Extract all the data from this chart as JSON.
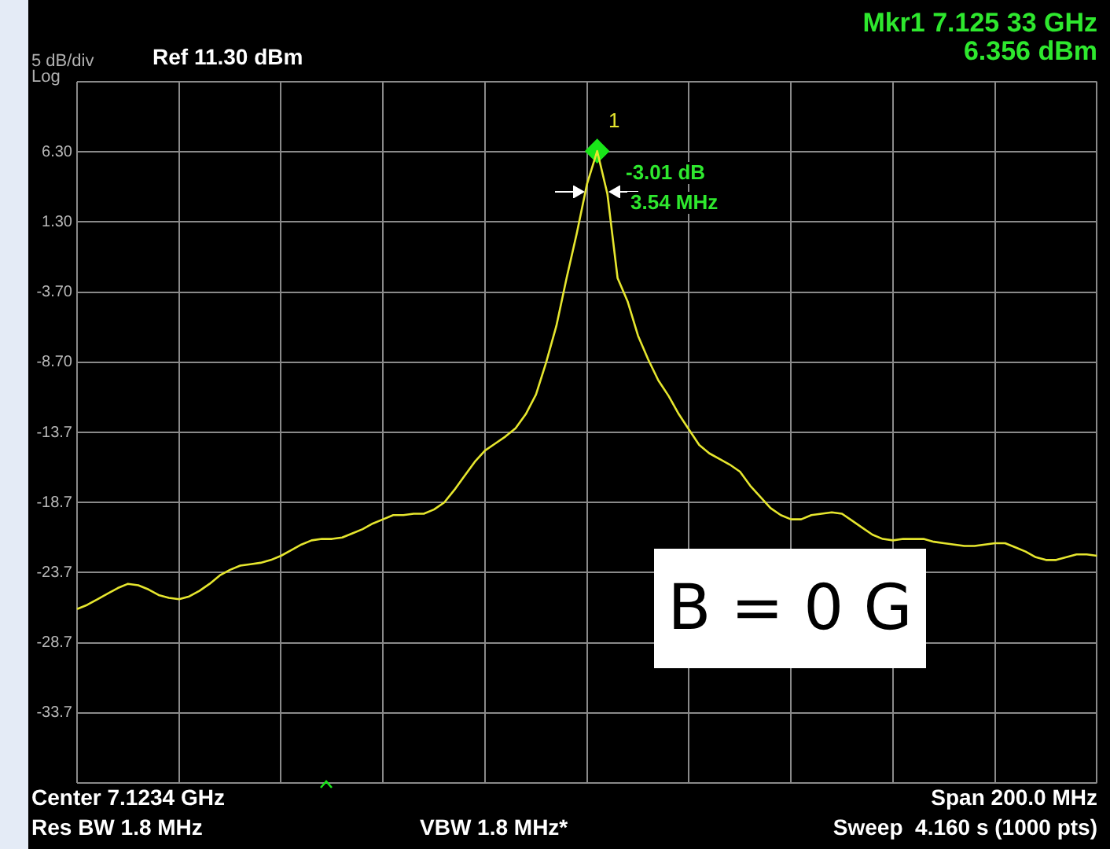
{
  "chart_data": {
    "type": "line",
    "categories": [
      null,
      null,
      null,
      null,
      null,
      null,
      null,
      null,
      null,
      null,
      null,
      null,
      null,
      null,
      null,
      null,
      null,
      null,
      null,
      null,
      null,
      null,
      null,
      null,
      null,
      null,
      null,
      null,
      null,
      null,
      null,
      null,
      null,
      null,
      null,
      null,
      null,
      null,
      null,
      null,
      null,
      null,
      null,
      null,
      null,
      null,
      null,
      null,
      null,
      null,
      null,
      null,
      null,
      null,
      null,
      null,
      null,
      null,
      null,
      null,
      null,
      null,
      null,
      null,
      null,
      null,
      null,
      null,
      null,
      null,
      null,
      null,
      null,
      null,
      null,
      null,
      null,
      null,
      null,
      null,
      null,
      null,
      null,
      null,
      null,
      null,
      null,
      null,
      null,
      null,
      null,
      null,
      null,
      null,
      null,
      null,
      null,
      null,
      null,
      null,
      null
    ],
    "series": [
      {
        "type": "line",
        "color": "#e6e62e",
        "marker": "none",
        "values": [
          -26.3,
          -26.0,
          -25.6,
          -25.2,
          -24.8,
          -24.5,
          -24.6,
          -24.9,
          -25.3,
          -25.5,
          -25.6,
          -25.4,
          -25.0,
          -24.5,
          -23.9,
          -23.5,
          -23.2,
          -23.1,
          -23.0,
          -22.8,
          -22.5,
          -22.1,
          -21.7,
          -21.4,
          -21.3,
          -21.3,
          -21.2,
          -20.9,
          -20.6,
          -20.2,
          -19.9,
          -19.6,
          -19.6,
          -19.5,
          -19.5,
          -19.2,
          -18.7,
          -17.8,
          -16.8,
          -15.8,
          -15.0,
          -14.5,
          -14.0,
          -13.4,
          -12.4,
          -11.0,
          -8.7,
          -6.1,
          -2.7,
          0.5,
          4.0,
          6.356,
          3.3,
          -2.7,
          -4.4,
          -6.8,
          -8.5,
          -10.0,
          -11.1,
          -12.4,
          -13.5,
          -14.6,
          -15.2,
          -15.6,
          -16.0,
          -16.5,
          -17.5,
          -18.3,
          -19.1,
          -19.6,
          -19.9,
          -19.9,
          -19.6,
          -19.5,
          -19.4,
          -19.5,
          -20.0,
          -20.5,
          -21.0,
          -21.3,
          -21.4,
          -21.3,
          -21.3,
          -21.3,
          -21.5,
          -21.6,
          -21.7,
          -21.8,
          -21.8,
          -21.7,
          -21.6,
          -21.6,
          -21.9,
          -22.2,
          -22.6,
          -22.8,
          -22.8,
          -22.6,
          -22.4,
          -22.4,
          -22.5
        ]
      },
      {
        "type": "scatter",
        "color": "#19e619",
        "marker": "diamond",
        "values": [
          null,
          null,
          null,
          null,
          null,
          null,
          null,
          null,
          null,
          null,
          null,
          null,
          null,
          null,
          null,
          null,
          null,
          null,
          null,
          null,
          null,
          null,
          null,
          null,
          null,
          null,
          null,
          null,
          null,
          null,
          null,
          null,
          null,
          null,
          null,
          null,
          null,
          null,
          null,
          null,
          null,
          null,
          null,
          null,
          null,
          null,
          null,
          null,
          null,
          null,
          null,
          6.356,
          null,
          null,
          null,
          null,
          null,
          null,
          null,
          null,
          null,
          null,
          null,
          null,
          null,
          null,
          null,
          null,
          null,
          null,
          null,
          null,
          null,
          null,
          null,
          null,
          null,
          null,
          null,
          null,
          null,
          null,
          null,
          null,
          null,
          null,
          null,
          null,
          null,
          null,
          null,
          null,
          null,
          null,
          null,
          null,
          null,
          null,
          null,
          null,
          null
        ]
      }
    ],
    "ylim": [
      -38.7,
      11.3
    ],
    "yticks": [
      {
        "value": 11.3,
        "label": null
      },
      {
        "value": 6.3,
        "label": "6.30"
      },
      {
        "value": 1.3,
        "label": "1.30"
      },
      {
        "value": -3.7,
        "label": "-3.70"
      },
      {
        "value": -8.7,
        "label": "-8.70"
      },
      -13.7,
      -18.7,
      -23.7,
      -28.7,
      -33.7,
      {
        "value": -38.7,
        "label": null
      }
    ],
    "grid": true,
    "legend": false,
    "annotations": [
      "5 dB/div",
      "Log",
      "Ref 11.30 dBm",
      "Mkr1 7.125 33 GHz",
      "6.356 dBm",
      "1",
      "-3.01 dB",
      "3.54 MHz",
      "B = 0 G",
      "Center 7.1234 GHz",
      "Res BW 1.8 MHz",
      "VBW 1.8 MHz*",
      "Span 200.0 MHz",
      "Sweep  4.160 s (1000 pts)"
    ]
  }
}
